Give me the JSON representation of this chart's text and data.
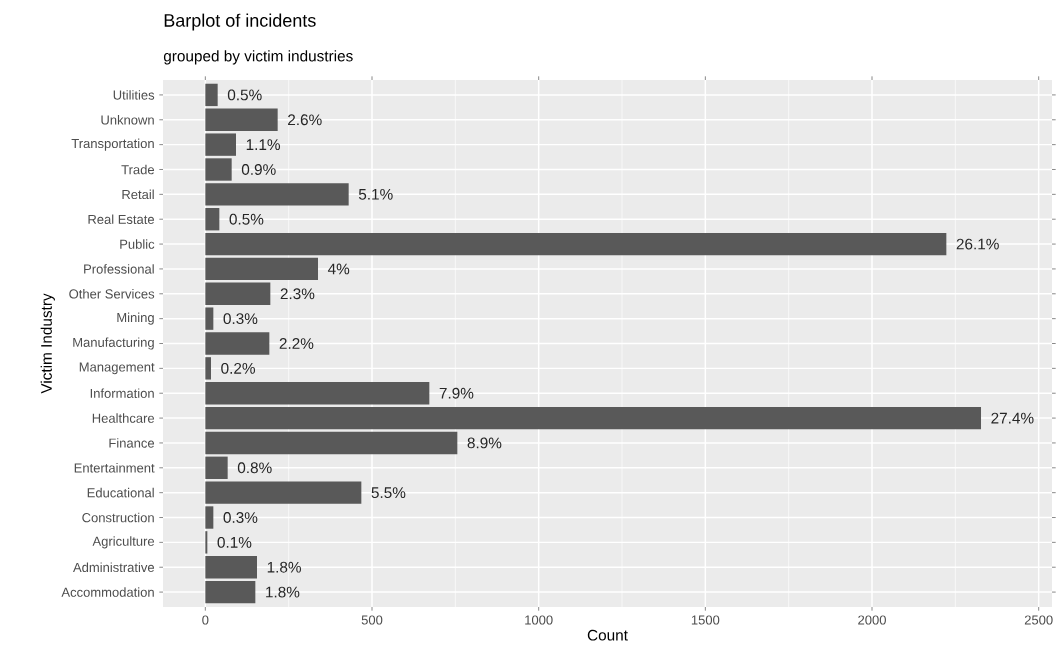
{
  "chart_data": {
    "type": "bar",
    "orientation": "horizontal",
    "title": "Barplot of incidents",
    "subtitle": "grouped by victim industries",
    "xlabel": "Count",
    "ylabel": "Victim Industry",
    "categories": [
      "Utilities",
      "Unknown",
      "Transportation",
      "Trade",
      "Retail",
      "Real Estate",
      "Public",
      "Professional",
      "Other Services",
      "Mining",
      "Manufacturing",
      "Management",
      "Information",
      "Healthcare",
      "Finance",
      "Entertainment",
      "Educational",
      "Construction",
      "Agriculture",
      "Administrative",
      "Accommodation"
    ],
    "values": [
      37,
      217,
      92,
      79,
      430,
      42,
      2223,
      338,
      195,
      24,
      192,
      17,
      672,
      2327,
      756,
      67,
      468,
      24,
      6,
      155,
      150
    ],
    "annotations": [
      {
        "text": "0.5%",
        "x": 37,
        "y": "Utilities"
      },
      {
        "text": "2.6%",
        "x": 217,
        "y": "Unknown"
      },
      {
        "text": "1.1%",
        "x": 92,
        "y": "Transportation"
      },
      {
        "text": "0.9%",
        "x": 79,
        "y": "Trade"
      },
      {
        "text": "5.1%",
        "x": 430,
        "y": "Retail"
      },
      {
        "text": "0.5%",
        "x": 42,
        "y": "Real Estate"
      },
      {
        "text": "26.1%",
        "x": 2223,
        "y": "Public"
      },
      {
        "text": "4%",
        "x": 338,
        "y": "Professional"
      },
      {
        "text": "2.3%",
        "x": 195,
        "y": "Other Services"
      },
      {
        "text": "0.3%",
        "x": 24,
        "y": "Mining"
      },
      {
        "text": "2.2%",
        "x": 192,
        "y": "Manufacturing"
      },
      {
        "text": "0.2%",
        "x": 17,
        "y": "Management"
      },
      {
        "text": "7.9%",
        "x": 672,
        "y": "Information"
      },
      {
        "text": "27.4%",
        "x": 2327,
        "y": "Healthcare"
      },
      {
        "text": "8.9%",
        "x": 756,
        "y": "Finance"
      },
      {
        "text": "0.8%",
        "x": 67,
        "y": "Entertainment"
      },
      {
        "text": "5.5%",
        "x": 468,
        "y": "Educational"
      },
      {
        "text": "0.3%",
        "x": 24,
        "y": "Construction"
      },
      {
        "text": "0.1%",
        "x": 6,
        "y": "Agriculture"
      },
      {
        "text": "1.8%",
        "x": 155,
        "y": "Administrative"
      },
      {
        "text": "1.8%",
        "x": 150,
        "y": "Accommodation"
      }
    ],
    "color": "#595959",
    "xlim": [
      -127,
      2540
    ],
    "xticks": [
      0,
      500,
      1000,
      1500,
      2000,
      2500
    ],
    "grid": true
  }
}
